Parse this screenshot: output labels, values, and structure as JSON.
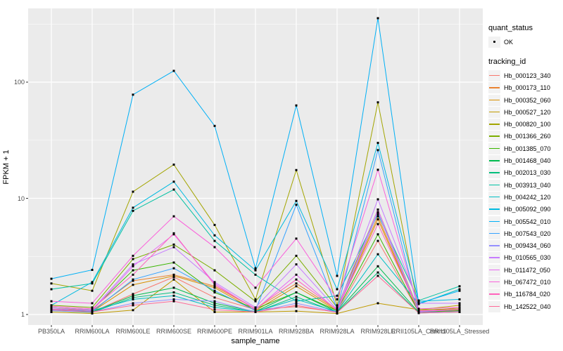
{
  "legend": {
    "quant_status": {
      "title": "quant_status",
      "items": [
        {
          "label": "OK",
          "symbol": "black-point"
        }
      ]
    },
    "tracking_id": {
      "title": "tracking_id"
    }
  },
  "chart_data": {
    "type": "line",
    "title": "",
    "xlabel": "sample_name",
    "ylabel": "FPKM + 1",
    "y_scale": "log10",
    "ylim": [
      0.8,
      420
    ],
    "y_major_ticks": [
      1,
      10,
      100
    ],
    "y_minor_ticks": [
      3.1623,
      31.623,
      316.23
    ],
    "grid": "on",
    "legend_position": "right",
    "panel_bg": "#EBEBEB",
    "grid_color": "#FFFFFF",
    "point_color": "#000000",
    "quant_status_value": "OK",
    "categories": [
      "PB350LA",
      "RRIM600LA",
      "RRIM600LE",
      "RRIM600SE",
      "RRIM600PE",
      "RRIM901LA",
      "RRIM928BA",
      "RRIM928LA",
      "RRIM928LE",
      "RRII105LA_Control",
      "RRII105LA_Stressed"
    ],
    "series": [
      {
        "name": "Hb_000123_340",
        "color": "#F8766D",
        "values": [
          1.1,
          1.05,
          1.5,
          2.1,
          1.4,
          1.1,
          1.17,
          1.05,
          4.3,
          1.05,
          1.15
        ]
      },
      {
        "name": "Hb_000173_110",
        "color": "#EA8331",
        "values": [
          1.15,
          1.08,
          1.95,
          2.2,
          1.75,
          1.12,
          1.85,
          1.1,
          7.0,
          1.05,
          1.1
        ]
      },
      {
        "name": "Hb_000352_060",
        "color": "#D89000",
        "values": [
          1.12,
          1.06,
          1.8,
          2.15,
          1.7,
          1.08,
          1.75,
          1.08,
          6.6,
          1.04,
          1.08
        ]
      },
      {
        "name": "Hb_000527_120",
        "color": "#C09B00",
        "values": [
          1.05,
          1.02,
          1.09,
          2.0,
          1.05,
          1.05,
          1.07,
          1.02,
          1.25,
          1.1,
          1.2
        ]
      },
      {
        "name": "Hb_000820_100",
        "color": "#A3A500",
        "values": [
          1.85,
          1.6,
          11.4,
          19.5,
          5.9,
          1.35,
          17.5,
          1.2,
          67.0,
          1.1,
          1.12
        ]
      },
      {
        "name": "Hb_001366_260",
        "color": "#7CAE00",
        "values": [
          1.2,
          1.15,
          3.0,
          4.0,
          2.4,
          1.3,
          3.2,
          1.15,
          8.0,
          1.08,
          1.1
        ]
      },
      {
        "name": "Hb_001385_070",
        "color": "#39B600",
        "values": [
          1.15,
          1.1,
          2.4,
          2.8,
          1.55,
          1.12,
          1.55,
          1.08,
          4.9,
          1.05,
          1.08
        ]
      },
      {
        "name": "Hb_001468_040",
        "color": "#00BB4E",
        "values": [
          1.1,
          1.05,
          1.45,
          1.7,
          1.25,
          1.06,
          1.55,
          1.05,
          2.6,
          1.04,
          1.06
        ]
      },
      {
        "name": "Hb_002013_030",
        "color": "#00BF7D",
        "values": [
          1.08,
          1.04,
          1.4,
          1.55,
          1.2,
          1.05,
          1.42,
          1.04,
          2.3,
          1.03,
          1.05
        ]
      },
      {
        "name": "Hb_003913_040",
        "color": "#00C1A3",
        "values": [
          1.65,
          1.85,
          7.8,
          11.9,
          4.3,
          2.2,
          1.3,
          1.45,
          7.3,
          1.32,
          1.75
        ]
      },
      {
        "name": "Hb_004242_120",
        "color": "#00BFC4",
        "values": [
          1.12,
          1.08,
          1.35,
          1.45,
          1.15,
          1.06,
          1.35,
          1.06,
          3.3,
          1.23,
          1.65
        ]
      },
      {
        "name": "Hb_005092_090",
        "color": "#00BAE0",
        "values": [
          1.2,
          1.9,
          8.3,
          13.9,
          4.8,
          2.4,
          9.5,
          1.65,
          30.0,
          1.3,
          1.35
        ]
      },
      {
        "name": "Hb_005542_010",
        "color": "#00B0F6",
        "values": [
          2.03,
          2.42,
          78.0,
          125.0,
          42.0,
          2.5,
          63.0,
          2.15,
          355.0,
          1.25,
          1.6
        ]
      },
      {
        "name": "Hb_007543_020",
        "color": "#35A2FF",
        "values": [
          1.1,
          1.06,
          2.0,
          2.5,
          1.6,
          1.08,
          8.8,
          1.12,
          26.0,
          1.06,
          1.1
        ]
      },
      {
        "name": "Hb_009434_060",
        "color": "#9590FF",
        "values": [
          1.08,
          1.05,
          1.25,
          1.35,
          1.3,
          1.05,
          1.25,
          1.05,
          7.6,
          1.04,
          1.06
        ]
      },
      {
        "name": "Hb_010565_030",
        "color": "#C77CFF",
        "values": [
          1.15,
          1.1,
          2.7,
          3.8,
          1.9,
          1.15,
          2.7,
          1.1,
          9.8,
          1.25,
          1.25
        ]
      },
      {
        "name": "Hb_011472_050",
        "color": "#E76BF3",
        "values": [
          1.12,
          1.08,
          2.6,
          4.9,
          1.85,
          1.1,
          2.2,
          1.08,
          8.0,
          1.06,
          1.1
        ]
      },
      {
        "name": "Hb_067472_010",
        "color": "#FA62DB",
        "values": [
          1.3,
          1.25,
          3.2,
          7.0,
          3.8,
          1.7,
          4.5,
          1.35,
          17.6,
          1.12,
          1.15
        ]
      },
      {
        "name": "Hb_116784_020",
        "color": "#FF62BC",
        "values": [
          1.18,
          1.12,
          2.2,
          5.0,
          1.8,
          1.12,
          2.0,
          1.1,
          6.0,
          1.08,
          1.1
        ]
      },
      {
        "name": "Hb_142522_040",
        "color": "#FF6A98",
        "values": [
          1.1,
          1.05,
          1.2,
          1.3,
          1.1,
          1.05,
          1.2,
          1.04,
          2.15,
          1.03,
          1.05
        ]
      }
    ]
  }
}
